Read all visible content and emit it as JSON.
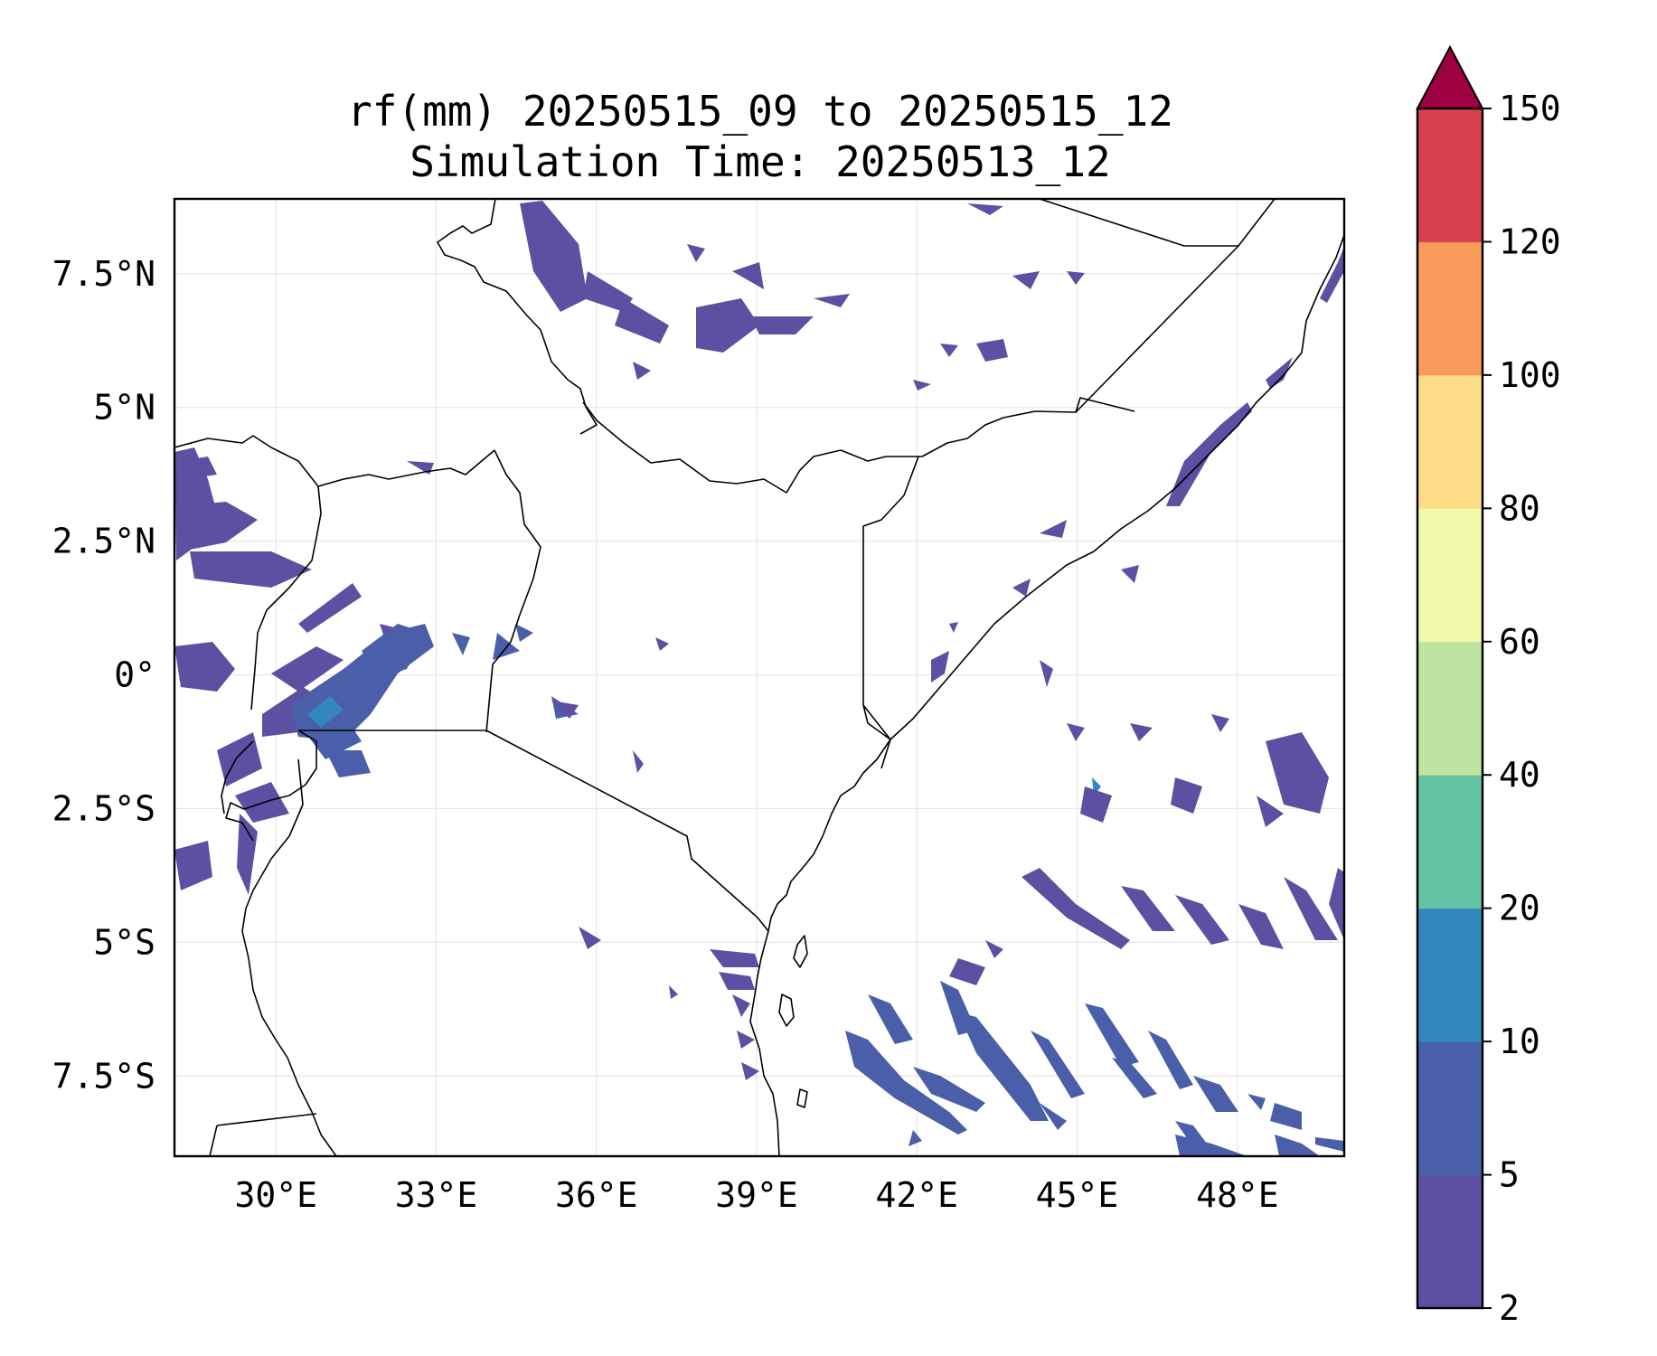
{
  "title": {
    "line1": "rf(mm) 20250515_09 to 20250515_12",
    "line2": "Simulation Time: 20250513_12"
  },
  "map": {
    "lon_range": [
      28.1,
      50.0
    ],
    "lat_range": [
      -9.0,
      8.9
    ],
    "lon_ticks": [
      {
        "value": 30,
        "label": "30°E"
      },
      {
        "value": 33,
        "label": "33°E"
      },
      {
        "value": 36,
        "label": "36°E"
      },
      {
        "value": 39,
        "label": "39°E"
      },
      {
        "value": 42,
        "label": "42°E"
      },
      {
        "value": 45,
        "label": "45°E"
      },
      {
        "value": 48,
        "label": "48°E"
      }
    ],
    "lat_ticks": [
      {
        "value": 7.5,
        "label": "7.5°N"
      },
      {
        "value": 5,
        "label": "5°N"
      },
      {
        "value": 2.5,
        "label": "2.5°N"
      },
      {
        "value": 0,
        "label": "0°"
      },
      {
        "value": -2.5,
        "label": "2.5°S"
      },
      {
        "value": -5,
        "label": "5°S"
      },
      {
        "value": -7.5,
        "label": "7.5°S"
      }
    ],
    "gridlines": true,
    "boundary_color": "#000000",
    "rain_color_dominant": "#5e4fa2",
    "rain_color_secondary": "#4a5ea9",
    "rain_color_peak": "#3288bd"
  },
  "colorbar": {
    "orientation": "vertical",
    "extend": "max",
    "extend_color": "#9e0142",
    "levels": [
      {
        "label": "2",
        "color": "#5e4fa2"
      },
      {
        "label": "5",
        "color": "#4a60ab"
      },
      {
        "label": "10",
        "color": "#3288bd"
      },
      {
        "label": "20",
        "color": "#66c2a5"
      },
      {
        "label": "40",
        "color": "#bde4a0"
      },
      {
        "label": "60",
        "color": "#f2f9aa"
      },
      {
        "label": "80",
        "color": "#fddc88"
      },
      {
        "label": "100",
        "color": "#f99b5b"
      },
      {
        "label": "120",
        "color": "#d6404f"
      },
      {
        "label": "150",
        "color": ""
      }
    ]
  }
}
